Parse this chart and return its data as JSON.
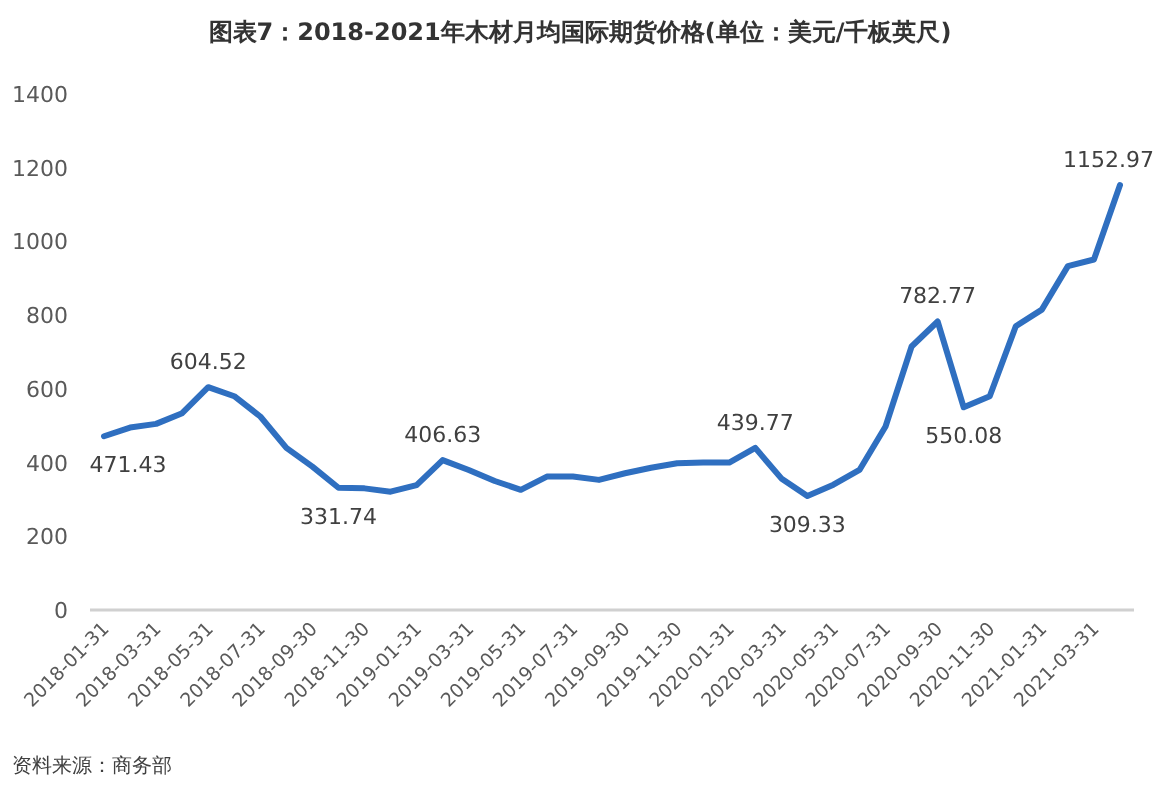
{
  "chart_data": {
    "type": "line",
    "title": "图表7：2018-2021年木材月均国际期货价格(单位：美元/千板英尺)",
    "categories": [
      "2018-01-31",
      null,
      "2018-03-31",
      null,
      "2018-05-31",
      null,
      "2018-07-31",
      null,
      "2018-09-30",
      null,
      "2018-11-30",
      null,
      "2019-01-31",
      null,
      "2019-03-31",
      null,
      "2019-05-31",
      null,
      "2019-07-31",
      null,
      "2019-09-30",
      null,
      "2019-11-30",
      null,
      "2020-01-31",
      null,
      "2020-03-31",
      null,
      "2020-05-31",
      null,
      "2020-07-31",
      null,
      "2020-09-30",
      null,
      "2020-11-30",
      null,
      "2021-01-31",
      null,
      "2021-03-31",
      null
    ],
    "values": [
      471.43,
      495,
      505,
      534,
      604.52,
      580,
      525,
      440,
      389,
      331.74,
      330,
      321,
      339,
      406.63,
      380,
      350,
      326,
      362,
      362,
      353,
      371,
      386,
      398,
      400,
      400,
      439.77,
      357,
      309.33,
      340,
      380,
      498,
      715,
      782.77,
      550.08,
      580,
      770,
      815,
      933,
      951,
      1152.97
    ],
    "value_labels": [
      "471.43",
      null,
      null,
      null,
      "604.52",
      null,
      null,
      null,
      null,
      "331.74",
      null,
      null,
      null,
      "406.63",
      null,
      null,
      null,
      null,
      null,
      null,
      null,
      null,
      null,
      null,
      null,
      "439.77",
      null,
      "309.33",
      null,
      null,
      null,
      null,
      "782.77",
      "550.08",
      null,
      null,
      null,
      null,
      null,
      "1152.97"
    ],
    "color": "#2f6fc0",
    "ylim": [
      0,
      1400
    ],
    "yticks": [
      0,
      200,
      400,
      600,
      800,
      1000,
      1200,
      1400
    ],
    "grid": false,
    "marker": "none",
    "line_style": "solid",
    "annotations": [
      "资料来源：商务部"
    ]
  }
}
